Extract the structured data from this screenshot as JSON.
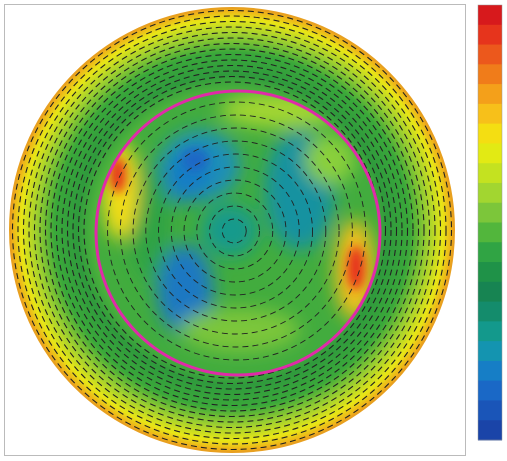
{
  "colorbar": {
    "colors": [
      "#d7191c",
      "#e6341c",
      "#ec581c",
      "#f07c1a",
      "#f4a01a",
      "#f7c01a",
      "#f4de12",
      "#e2ea14",
      "#c4e220",
      "#a2d630",
      "#7cc63a",
      "#52b63c",
      "#30a444",
      "#1f9248",
      "#178452",
      "#148c6c",
      "#13998c",
      "#1494b0",
      "#167ec6",
      "#1a68c6",
      "#1a55b8",
      "#1a44a8"
    ]
  }
}
